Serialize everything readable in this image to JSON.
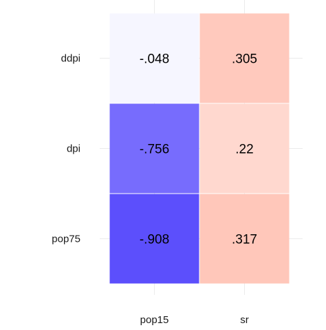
{
  "chart_data": {
    "type": "heatmap",
    "title": "",
    "xlabel": "",
    "ylabel": "",
    "x_categories": [
      "pop15",
      "sr"
    ],
    "y_categories": [
      "ddpi",
      "dpi",
      "pop75"
    ],
    "values": [
      [
        -0.048,
        0.305
      ],
      [
        -0.756,
        0.22
      ],
      [
        -0.908,
        0.317
      ]
    ],
    "labels": [
      [
        "-.048",
        ".305"
      ],
      [
        "-.756",
        ".22"
      ],
      [
        "-.908",
        ".317"
      ]
    ],
    "color_scale": {
      "low": "#4b3dfc",
      "mid": "#ffffff",
      "high": "#ff4d26",
      "domain": [
        -1,
        0,
        1
      ]
    },
    "grid": true,
    "legend": "none"
  }
}
